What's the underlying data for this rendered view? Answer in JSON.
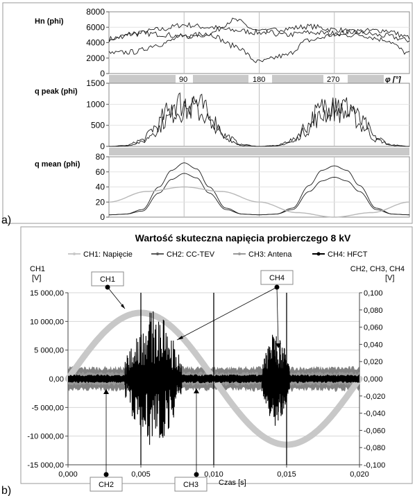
{
  "panel_labels": {
    "a": "a)",
    "b": "b)"
  },
  "colors": {
    "frame": "#8a8a8a",
    "grid": "#bdbdbd",
    "trace": "#1a1a1a",
    "ref_sine": "#b8b8b8",
    "band": "#c9c9c9",
    "ch1": "#c8c8c8",
    "ch2": "#5a5a5a",
    "ch3": "#9a9a9a",
    "ch4": "#000000"
  },
  "chart_data": [
    {
      "type": "line",
      "title": "",
      "ylabel": "Hn (phi)",
      "ylim": [
        0,
        8000
      ],
      "yticks": [
        "8000",
        "6000",
        "4000",
        "2000",
        "0"
      ],
      "xlim": [
        0,
        360
      ],
      "series": [
        {
          "x": [
            0,
            30,
            60,
            90,
            120,
            150,
            180,
            210,
            240,
            270,
            300,
            330,
            360
          ],
          "y": [
            4500,
            5100,
            5700,
            6300,
            6000,
            5600,
            5300,
            5800,
            6100,
            5700,
            5300,
            4900,
            4300
          ]
        },
        {
          "x": [
            0,
            30,
            60,
            90,
            120,
            150,
            180,
            210,
            240,
            270,
            300,
            330,
            360
          ],
          "y": [
            4300,
            5300,
            5100,
            4800,
            5200,
            6900,
            5500,
            5000,
            5300,
            5200,
            5500,
            5600,
            4700
          ]
        },
        {
          "x": [
            0,
            30,
            60,
            90,
            120,
            150,
            180,
            210,
            240,
            270,
            300,
            330,
            360
          ],
          "y": [
            2600,
            2800,
            3800,
            4800,
            5100,
            3600,
            1500,
            2300,
            4300,
            5000,
            5000,
            4400,
            2600
          ]
        }
      ]
    },
    {
      "type": "line",
      "title": "",
      "ylabel": "q peak (phi)",
      "ylim": [
        0,
        1500
      ],
      "yticks": [
        "1500",
        "1000",
        "500",
        "0"
      ],
      "xlim": [
        0,
        360
      ],
      "axis_band_labels": [
        "90",
        "180",
        "270"
      ],
      "axis_band_unit": "φ [°]",
      "series": [
        {
          "x": [
            0,
            20,
            40,
            55,
            70,
            80,
            90,
            100,
            110,
            125,
            140,
            160,
            180,
            200,
            220,
            235,
            250,
            260,
            270,
            280,
            290,
            305,
            320,
            340,
            360
          ],
          "y": [
            0,
            20,
            150,
            450,
            800,
            1050,
            1000,
            1100,
            950,
            600,
            250,
            40,
            0,
            20,
            150,
            450,
            800,
            1000,
            1050,
            950,
            900,
            550,
            200,
            30,
            0
          ]
        },
        {
          "x": [
            0,
            20,
            40,
            55,
            70,
            80,
            90,
            100,
            110,
            125,
            140,
            160,
            180,
            200,
            220,
            235,
            250,
            260,
            270,
            280,
            290,
            305,
            320,
            340,
            360
          ],
          "y": [
            0,
            10,
            100,
            350,
            650,
            850,
            850,
            900,
            800,
            500,
            180,
            20,
            0,
            10,
            100,
            350,
            650,
            800,
            900,
            800,
            750,
            450,
            150,
            20,
            0
          ]
        }
      ]
    },
    {
      "type": "line",
      "title": "",
      "ylabel": "q mean (phi)",
      "ylim": [
        0,
        80
      ],
      "yticks": [
        "80",
        "60",
        "40",
        "20",
        "0"
      ],
      "xlim": [
        0,
        360
      ],
      "series": [
        {
          "x": [
            0,
            20,
            40,
            60,
            75,
            90,
            105,
            120,
            140,
            160,
            180,
            200,
            220,
            240,
            255,
            270,
            285,
            300,
            320,
            340,
            360
          ],
          "y": [
            3,
            4,
            10,
            40,
            62,
            72,
            64,
            40,
            12,
            4,
            3,
            4,
            12,
            42,
            62,
            68,
            62,
            42,
            12,
            4,
            3
          ]
        },
        {
          "x": [
            0,
            20,
            40,
            60,
            75,
            90,
            105,
            120,
            140,
            160,
            180,
            200,
            220,
            240,
            255,
            270,
            285,
            300,
            320,
            340,
            360
          ],
          "y": [
            3,
            4,
            8,
            32,
            50,
            58,
            52,
            32,
            10,
            4,
            3,
            4,
            10,
            34,
            48,
            53,
            48,
            34,
            10,
            4,
            3
          ]
        },
        {
          "x": [
            0,
            45,
            90,
            135,
            180,
            225,
            270,
            315,
            360
          ],
          "y": [
            20,
            34,
            40,
            34,
            20,
            6,
            0,
            6,
            20
          ]
        }
      ]
    },
    {
      "type": "line",
      "title": "Wartość skuteczna napięcia probierczego 8 kV",
      "legend": [
        "CH1: Napięcie",
        "CH2: CC-TEV",
        "CH3: Antena",
        "CH4: HFCT"
      ],
      "legend_position": "top",
      "ylabel_left": [
        "CH1",
        "[V]"
      ],
      "ylabel_right": [
        "CH2, CH3, CH4",
        "[V]"
      ],
      "xlabel": "Czas [s]",
      "xlim": [
        0,
        0.02
      ],
      "ylim_left": [
        -15000,
        15000
      ],
      "ylim_right": [
        -0.1,
        0.1
      ],
      "xticks": [
        "0,000",
        "0,005",
        "0,010",
        "0,015",
        "0,020"
      ],
      "yticks_left": [
        "15 000,00",
        "10 000,00",
        "5 000,00",
        "0,00",
        "-5 000,00",
        "-10 000,00",
        "-15 000,00"
      ],
      "yticks_right": [
        "0,100",
        "0,080",
        "0,060",
        "0,040",
        "0,020",
        "0,000",
        "-0,020",
        "-0,040",
        "-0,060",
        "-0,080",
        "-0,100"
      ],
      "ch1_amplitude": 11500,
      "ch1_frequency_hz": 50,
      "ch2_band": 0.012,
      "ch3_band": 0.007,
      "ch4_bursts": [
        {
          "t_start": 0.0039,
          "t_end": 0.0078,
          "peak": 0.08
        },
        {
          "t_start": 0.0133,
          "t_end": 0.0152,
          "peak": 0.055
        }
      ],
      "callouts": [
        "CH1",
        "CH4",
        "CH2",
        "CH3"
      ]
    }
  ]
}
